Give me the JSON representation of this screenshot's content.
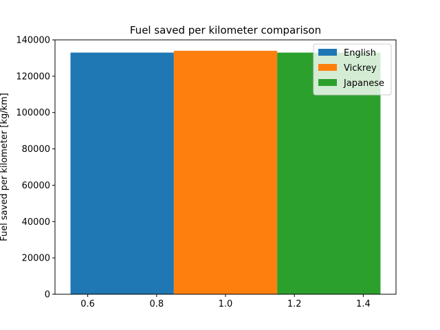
{
  "chart_data": {
    "type": "bar",
    "title": "Fuel saved per kilometer comparison",
    "xlabel": "",
    "ylabel": "Fuel saved per kilometer [kg/km]",
    "xlim": [
      0.505,
      1.495
    ],
    "ylim": [
      0,
      140000
    ],
    "xticks": [
      0.6,
      0.8,
      1.0,
      1.2,
      1.4
    ],
    "xtick_labels": [
      "0.6",
      "0.8",
      "1.0",
      "1.2",
      "1.4"
    ],
    "yticks": [
      0,
      20000,
      40000,
      60000,
      80000,
      100000,
      120000,
      140000
    ],
    "ytick_labels": [
      "0",
      "20000",
      "40000",
      "60000",
      "80000",
      "100000",
      "120000",
      "140000"
    ],
    "grid": false,
    "legend_position": "top-right",
    "series": [
      {
        "name": "English",
        "x": 0.7,
        "width": 0.3,
        "value": 133000,
        "color": "#1f77b4"
      },
      {
        "name": "Vickrey",
        "x": 1.0,
        "width": 0.3,
        "value": 134000,
        "color": "#ff7f0e"
      },
      {
        "name": "Japanese",
        "x": 1.3,
        "width": 0.3,
        "value": 133000,
        "color": "#2ca02c"
      }
    ]
  }
}
